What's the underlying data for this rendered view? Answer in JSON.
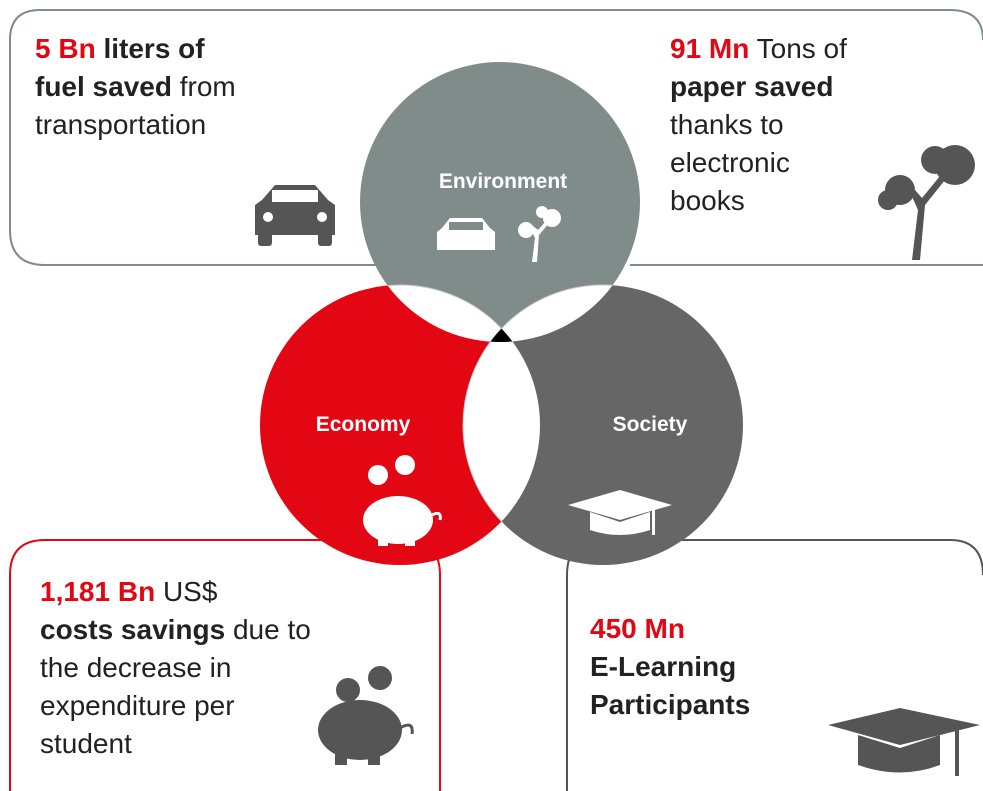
{
  "circles": [
    {
      "label": "Environment"
    },
    {
      "label": "Economy"
    },
    {
      "label": "Society"
    }
  ],
  "panels": [
    {
      "lines": [
        [
          {
            "text": "5 Bn",
            "bold": true,
            "color": "#e30613"
          },
          {
            "text": " liters of",
            "bold": true,
            "color": "#222222"
          }
        ],
        [
          {
            "text": "fuel saved",
            "bold": true,
            "color": "#222222"
          },
          {
            "text": " from",
            "bold": false,
            "color": "#222222"
          }
        ],
        [
          {
            "text": "transportation",
            "bold": false,
            "color": "#222222"
          }
        ]
      ]
    },
    {
      "lines": [
        [
          {
            "text": "91 Mn",
            "bold": true,
            "color": "#e30613"
          },
          {
            "text": " Tons of",
            "bold": false,
            "color": "#222222"
          }
        ],
        [
          {
            "text": "paper saved",
            "bold": true,
            "color": "#222222"
          }
        ],
        [
          {
            "text": "thanks to",
            "bold": false,
            "color": "#222222"
          }
        ],
        [
          {
            "text": "electronic",
            "bold": false,
            "color": "#222222"
          }
        ],
        [
          {
            "text": "books",
            "bold": false,
            "color": "#222222"
          }
        ]
      ]
    },
    {
      "lines": [
        [
          {
            "text": "1,181 Bn",
            "bold": true,
            "color": "#e30613"
          },
          {
            "text": " US$",
            "bold": false,
            "color": "#222222"
          }
        ],
        [
          {
            "text": "costs savings",
            "bold": true,
            "color": "#222222"
          },
          {
            "text": " due to",
            "bold": false,
            "color": "#222222"
          }
        ],
        [
          {
            "text": "the decrease in",
            "bold": false,
            "color": "#222222"
          }
        ],
        [
          {
            "text": "expenditure per",
            "bold": false,
            "color": "#222222"
          }
        ],
        [
          {
            "text": "student",
            "bold": false,
            "color": "#222222"
          }
        ]
      ]
    },
    {
      "lines": [
        [
          {
            "text": "450 Mn",
            "bold": true,
            "color": "#e30613"
          }
        ],
        [
          {
            "text": "E-Learning",
            "bold": true,
            "color": "#222222"
          }
        ],
        [
          {
            "text": "Participants",
            "bold": true,
            "color": "#222222"
          }
        ]
      ]
    }
  ]
}
